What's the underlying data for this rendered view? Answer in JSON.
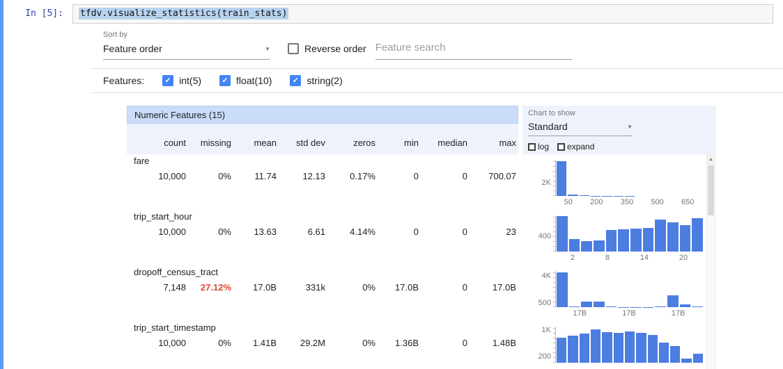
{
  "colors": {
    "accent_blue": "#4285f4",
    "histogram_bar": "#4c7de0",
    "alert_red": "#dd4b39",
    "table_title_bg": "#cbdcf8",
    "prompt_blue": "#303f9f",
    "code_selection_blue": "#b8d3f0"
  },
  "icons": {
    "dropdown_arrow": "▼",
    "check": "✓",
    "scroll_up": "▲"
  },
  "notebook": {
    "prompt": "In [5]:",
    "code": "tfdv.visualize_statistics(train_stats)"
  },
  "controls": {
    "sort_by_label": "Sort by",
    "sort_by_value": "Feature order",
    "reverse_order_label": "Reverse order",
    "reverse_checked": false,
    "search_placeholder": "Feature search",
    "features_label": "Features:",
    "feature_filters": [
      {
        "label": "int(5)",
        "checked": true
      },
      {
        "label": "float(10)",
        "checked": true
      },
      {
        "label": "string(2)",
        "checked": true
      }
    ]
  },
  "chart_controls": {
    "label": "Chart to show",
    "selected": "Standard",
    "log_label": "log",
    "log_checked": false,
    "expand_label": "expand",
    "expand_checked": false
  },
  "table": {
    "title": "Numeric Features (15)",
    "columns": [
      "count",
      "missing",
      "mean",
      "std dev",
      "zeros",
      "min",
      "median",
      "max"
    ],
    "rows": [
      {
        "name": "fare",
        "values": [
          "10,000",
          "0%",
          "11.74",
          "12.13",
          "0.17%",
          "0",
          "0",
          "700.07"
        ],
        "missing_highlight": false
      },
      {
        "name": "trip_start_hour",
        "values": [
          "10,000",
          "0%",
          "13.63",
          "6.61",
          "4.14%",
          "0",
          "0",
          "23"
        ],
        "missing_highlight": false
      },
      {
        "name": "dropoff_census_tract",
        "values": [
          "7,148",
          "27.12%",
          "17.0B",
          "331k",
          "0%",
          "17.0B",
          "0",
          "17.0B"
        ],
        "missing_highlight": true
      },
      {
        "name": "trip_start_timestamp",
        "values": [
          "10,000",
          "0%",
          "1.41B",
          "29.2M",
          "0%",
          "1.36B",
          "0",
          "1.48B"
        ],
        "missing_highlight": false
      }
    ]
  },
  "chart_data": [
    {
      "type": "bar",
      "feature": "fare",
      "values": [
        5400,
        200,
        70,
        40,
        25,
        15,
        10,
        8,
        6,
        5,
        4,
        3,
        2
      ],
      "ylim": [
        0,
        5600
      ],
      "x_ticks": [
        "50",
        "200",
        "350",
        "500",
        "650"
      ],
      "y_ticks": [
        {
          "label": "2K",
          "value": 2000
        }
      ]
    },
    {
      "type": "bar",
      "feature": "trip_start_hour",
      "values": [
        930,
        330,
        280,
        300,
        560,
        580,
        600,
        620,
        840,
        760,
        700,
        870
      ],
      "ylim": [
        0,
        950
      ],
      "x_ticks": [
        "2",
        "8",
        "14",
        "20"
      ],
      "y_ticks": [
        {
          "label": "400",
          "value": 400
        }
      ]
    },
    {
      "type": "bar",
      "feature": "dropoff_census_tract",
      "values": [
        4400,
        60,
        680,
        750,
        50,
        30,
        30,
        40,
        50,
        1500,
        380,
        80
      ],
      "ylim": [
        0,
        4600
      ],
      "x_ticks": [
        "17B",
        "17B",
        "17B"
      ],
      "y_ticks": [
        {
          "label": "4K",
          "value": 4000
        },
        {
          "label": "500",
          "value": 500
        }
      ]
    },
    {
      "type": "bar",
      "feature": "trip_start_timestamp",
      "values": [
        760,
        820,
        880,
        1020,
        940,
        900,
        950,
        900,
        850,
        620,
        500,
        130,
        280
      ],
      "ylim": [
        0,
        1100
      ],
      "x_ticks": [],
      "y_ticks": [
        {
          "label": "1K",
          "value": 1000
        },
        {
          "label": "200",
          "value": 200
        }
      ]
    }
  ]
}
